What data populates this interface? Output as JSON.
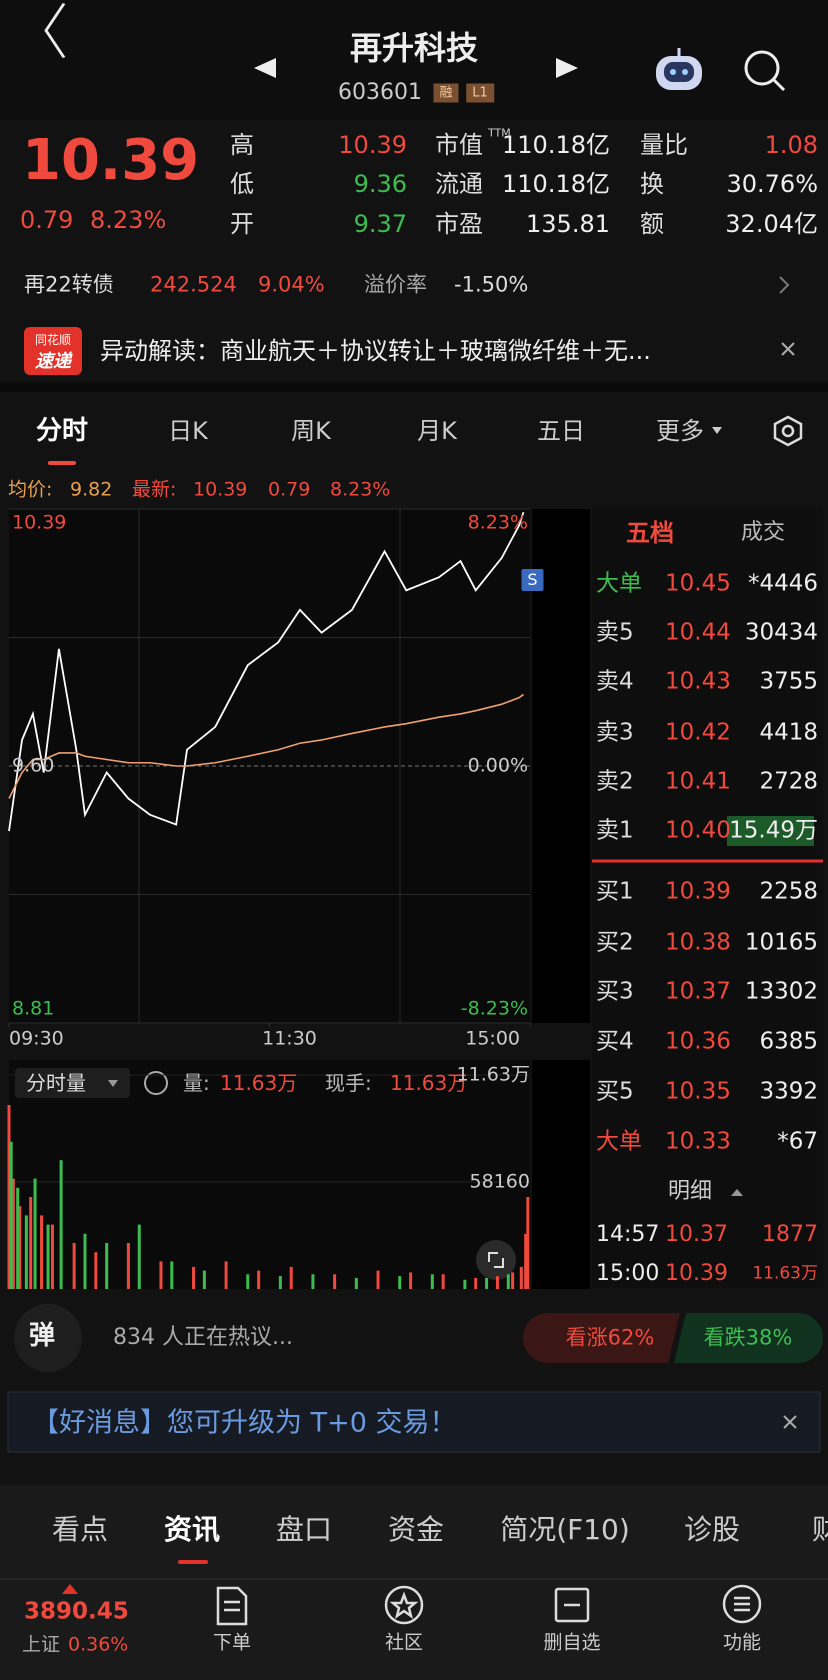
{
  "header": {
    "title": "再升科技",
    "code": "603601",
    "badges": [
      "融",
      "L1"
    ]
  },
  "quote": {
    "price": "10.39",
    "change": "0.79",
    "change_pct": "8.23%",
    "ttm": "TTM",
    "stats": [
      {
        "label": "高",
        "value": "10.39",
        "color": "#f04a3e"
      },
      {
        "label": "低",
        "value": "9.36",
        "color": "#3dbd50"
      },
      {
        "label": "开",
        "value": "9.37",
        "color": "#3dbd50"
      },
      {
        "label": "市值",
        "value": "110.18亿",
        "color": "#eeeeee"
      },
      {
        "label": "流通",
        "value": "110.18亿",
        "color": "#eeeeee"
      },
      {
        "label": "市盈",
        "value": "135.81",
        "color": "#eeeeee"
      },
      {
        "label": "量比",
        "value": "1.08",
        "color": "#f04a3e"
      },
      {
        "label": "换",
        "value": "30.76%",
        "color": "#eeeeee"
      },
      {
        "label": "额",
        "value": "32.04亿",
        "color": "#eeeeee"
      }
    ]
  },
  "bond": {
    "name": "再22转债",
    "price": "242.524",
    "change_pct": "9.04%",
    "premium_label": "溢价率",
    "premium": "-1.50%"
  },
  "news": {
    "logo": [
      "同花顺",
      "速递"
    ],
    "text": "异动解读：商业航天＋协议转让＋玻璃微纤维＋无..."
  },
  "tabs": {
    "items": [
      "分时",
      "日K",
      "周K",
      "月K",
      "五日",
      "更多"
    ],
    "active": 0
  },
  "chart_data": [
    {
      "type": "line",
      "info": {
        "avg_label": "均价:",
        "avg": "9.82",
        "last_label": "最新:",
        "last": "10.39",
        "change": "0.79",
        "change_pct": "8.23%"
      },
      "sell_marker": "S",
      "x": [
        0,
        6,
        11,
        16,
        23,
        31,
        35,
        45,
        55,
        65,
        77,
        82,
        95,
        110,
        124,
        134,
        144,
        158,
        173,
        183,
        198,
        208,
        215,
        227,
        235,
        237
      ],
      "series": [
        {
          "color": "#ffffff",
          "values": [
            9.4,
            9.68,
            9.76,
            9.58,
            9.96,
            9.65,
            9.45,
            9.58,
            9.5,
            9.45,
            9.42,
            9.65,
            9.72,
            9.91,
            9.98,
            10.08,
            10.01,
            10.08,
            10.26,
            10.14,
            10.18,
            10.23,
            10.14,
            10.24,
            10.34,
            10.38
          ]
        },
        {
          "color": "#f0a070",
          "values": [
            9.5,
            9.58,
            9.62,
            9.62,
            9.64,
            9.64,
            9.63,
            9.62,
            9.61,
            9.61,
            9.6,
            9.6,
            9.61,
            9.63,
            9.65,
            9.67,
            9.68,
            9.7,
            9.72,
            9.73,
            9.75,
            9.76,
            9.77,
            9.79,
            9.81,
            9.82
          ]
        }
      ],
      "xlim": [
        0,
        240
      ],
      "xticks": [
        {
          "value": 0,
          "label": "09:30"
        },
        {
          "value": 120,
          "label": "11:30"
        },
        {
          "value": 240,
          "label": "15:00"
        }
      ],
      "ylim": [
        8.81,
        10.39
      ],
      "yticks": [
        10.39,
        {
          "value": 9.6,
          "label": "9.60"
        },
        8.81
      ],
      "y2lim": [
        -8.23,
        8.23
      ],
      "y2ticks": [
        {
          "value": 8.23,
          "label": "8.23%"
        },
        {
          "value": 0,
          "label": "0.00%"
        },
        {
          "value": -8.23,
          "label": "-8.23%"
        }
      ]
    },
    {
      "type": "bar",
      "title": "分时量",
      "info": {
        "vol_label": "量:",
        "vol": "11.63万",
        "hand_label": "现手:",
        "hand": "11.63万"
      },
      "xlim": [
        0,
        240
      ],
      "ylim": [
        0,
        116300
      ],
      "yticks": [
        {
          "value": 116300,
          "label": "11.63万"
        },
        58160
      ],
      "series": [
        {
          "color": "#f04a3e",
          "x": [
            0,
            2,
            5,
            10,
            15,
            20,
            30,
            40,
            55,
            70,
            85,
            100,
            115,
            130,
            150,
            170,
            185,
            200,
            215,
            225,
            232,
            236,
            238,
            239
          ],
          "values": [
            100000,
            60000,
            45000,
            50000,
            40000,
            35000,
            25000,
            20000,
            25000,
            15000,
            12000,
            15000,
            10000,
            12000,
            8000,
            10000,
            9000,
            8000,
            6000,
            7000,
            9000,
            12000,
            30000,
            50000
          ]
        },
        {
          "color": "#3dbd50",
          "x": [
            1,
            4,
            8,
            12,
            18,
            24,
            35,
            45,
            60,
            75,
            90,
            110,
            125,
            140,
            160,
            180,
            195,
            210,
            220,
            230
          ],
          "values": [
            80000,
            55000,
            40000,
            60000,
            35000,
            70000,
            30000,
            25000,
            35000,
            15000,
            10000,
            8000,
            7000,
            8000,
            6000,
            7000,
            8000,
            5000,
            6000,
            8000
          ]
        }
      ]
    }
  ],
  "order_book": {
    "tabs": [
      "五档",
      "成交"
    ],
    "rows": [
      {
        "label": "大单",
        "price": "10.45",
        "volume": "*4446",
        "label_color": "#3dbd50"
      },
      {
        "label": "卖5",
        "price": "10.44",
        "volume": "30434"
      },
      {
        "label": "卖4",
        "price": "10.43",
        "volume": "3755"
      },
      {
        "label": "卖3",
        "price": "10.42",
        "volume": "4418"
      },
      {
        "label": "卖2",
        "price": "10.41",
        "volume": "2728"
      },
      {
        "label": "卖1",
        "price": "10.40",
        "volume": "15.49万"
      },
      {
        "label": "买1",
        "price": "10.39",
        "volume": "2258"
      },
      {
        "label": "买2",
        "price": "10.38",
        "volume": "10165"
      },
      {
        "label": "买3",
        "price": "10.37",
        "volume": "13302"
      },
      {
        "label": "买4",
        "price": "10.36",
        "volume": "6385"
      },
      {
        "label": "买5",
        "price": "10.35",
        "volume": "3392"
      },
      {
        "label": "大单",
        "price": "10.33",
        "volume": "*67",
        "label_color": "#f04a3e"
      }
    ]
  },
  "detail": {
    "title": "明细",
    "rows": [
      {
        "time": "14:57",
        "price": "10.37",
        "volume": "1877"
      },
      {
        "time": "15:00",
        "price": "10.39",
        "volume": "11.63万"
      }
    ]
  },
  "discussion": {
    "badge": "弹",
    "text": "834 人正在热议...",
    "bull": "看涨62%",
    "bear": "看跌38%"
  },
  "banner": {
    "text": "【好消息】您可升级为 T+0 交易！"
  },
  "bottom_tabs": {
    "items": [
      "看点",
      "资讯",
      "盘口",
      "资金",
      "简况(F10)",
      "诊股",
      "财"
    ],
    "active": 1
  },
  "footer": {
    "index_value": "3890.45",
    "index_name": "上证",
    "index_change": "0.36%",
    "buttons": [
      "下单",
      "社区",
      "删自选",
      "功能"
    ]
  }
}
